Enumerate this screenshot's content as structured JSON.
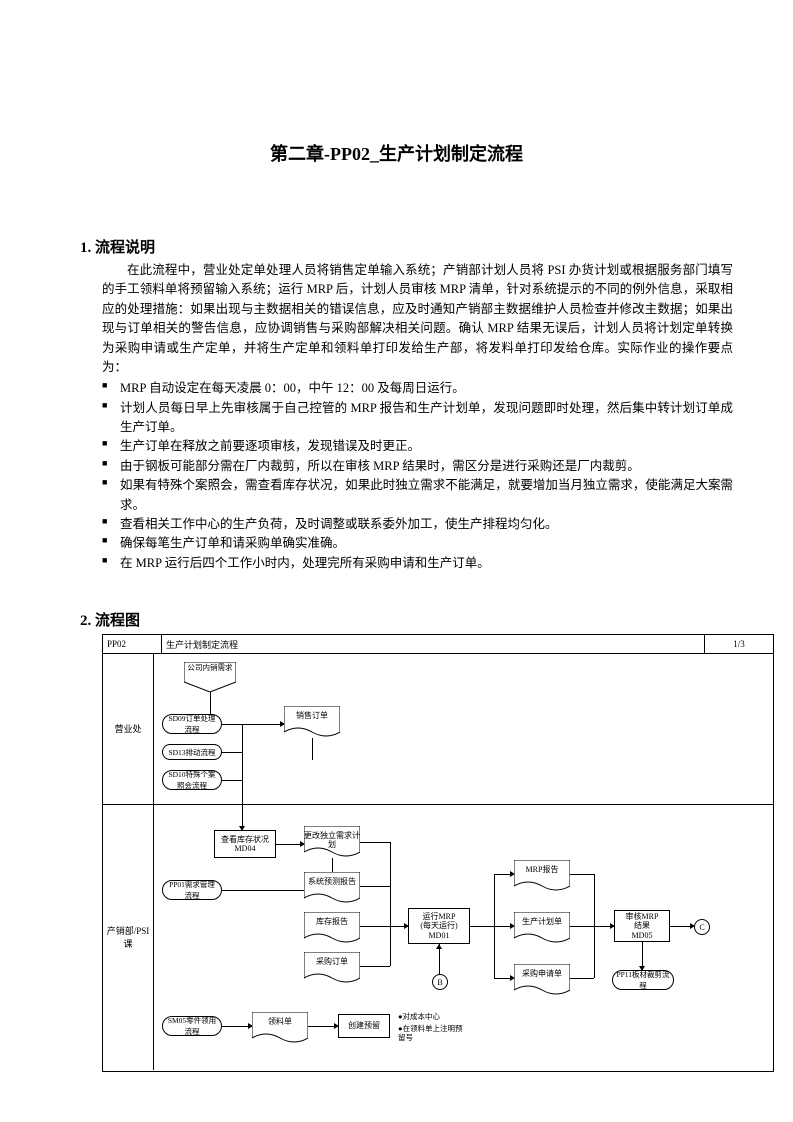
{
  "title": "第二章-PP02_生产计划制定流程",
  "section1": {
    "heading": "1. 流程说明",
    "para": "在此流程中，营业处定单处理人员将销售定单输入系统；产销部计划人员将 PSI 办货计划或根据服务部门填写的手工领料单将预留输入系统；运行 MRP 后，计划人员审核 MRP 清单，针对系统提示的不同的例外信息，采取相应的处理措施：如果出现与主数据相关的错误信息，应及时通知产销部主数据维护人员检查并修改主数据；如果出现与订单相关的警告信息，应协调销售与采购部解决相关问题。确认 MRP 结果无误后，计划人员将计划定单转换为采购申请或生产定单，并将生产定单和领料单打印发给生产部，将发料单打印发给仓库。实际作业的操作要点为：",
    "bullets": [
      "MRP 自动设定在每天凌晨 0：00，中午 12：00 及每周日运行。",
      "计划人员每日早上先审核属于自己控管的 MRP 报告和生产计划单，发现问题即时处理，然后集中转计划订单成生产订单。",
      "生产订单在释放之前要逐项审核，发现错误及时更正。",
      "由于钢板可能部分需在厂内裁剪，所以在审核 MRP 结果时，需区分是进行采购还是厂内裁剪。",
      "如果有特殊个案照会，需查看库存状况，如果此时独立需求不能满足，就要增加当月独立需求，使能满足大案需求。",
      "查看相关工作中心的生产负荷，及时调整或联系委外加工，使生产排程均匀化。",
      "确保每笔生产订单和请采购单确实准确。",
      "在 MRP 运行后四个工作小时内，处理完所有采购申请和生产订单。"
    ]
  },
  "section2": {
    "heading": "2. 流程图"
  },
  "flow": {
    "header": {
      "code": "PP02",
      "title": "生产计划制定流程",
      "page": "1/3"
    },
    "lanes": {
      "top": "营业处",
      "bot": "产销部/PSI课"
    },
    "shapes": {
      "s_company": "公司内销需求",
      "p_sd09": "SD09订单处理流程",
      "p_sd13": "SD13排动流程",
      "p_sd10": "SD10特殊个案照会流程",
      "d_sales": "销售订单",
      "b_md04": "查看库存状况\nMD04",
      "d_indreq": "更改独立需求计划",
      "p_pp01": "PP01需求管理流程",
      "d_sysfc": "系统预测报告",
      "d_inv": "库存报告",
      "d_po": "采购订单",
      "b_md01": "运行MRP\n(每天运行)\nMD01",
      "d_mrprpt": "MRP报告",
      "d_prodplan": "生产计划单",
      "d_pr": "采购申请单",
      "b_md05": "审核MRP\n结果\nMD05",
      "p_pp11": "PP11板材裁剪流程",
      "p_sm05": "SM05零件领用流程",
      "d_pick": "领料单",
      "b_reserve": "创建预留",
      "note1": "●对成本中心",
      "note2": "●在领料单上注明预留号",
      "conn_b": "B",
      "conn_c": "C"
    }
  }
}
